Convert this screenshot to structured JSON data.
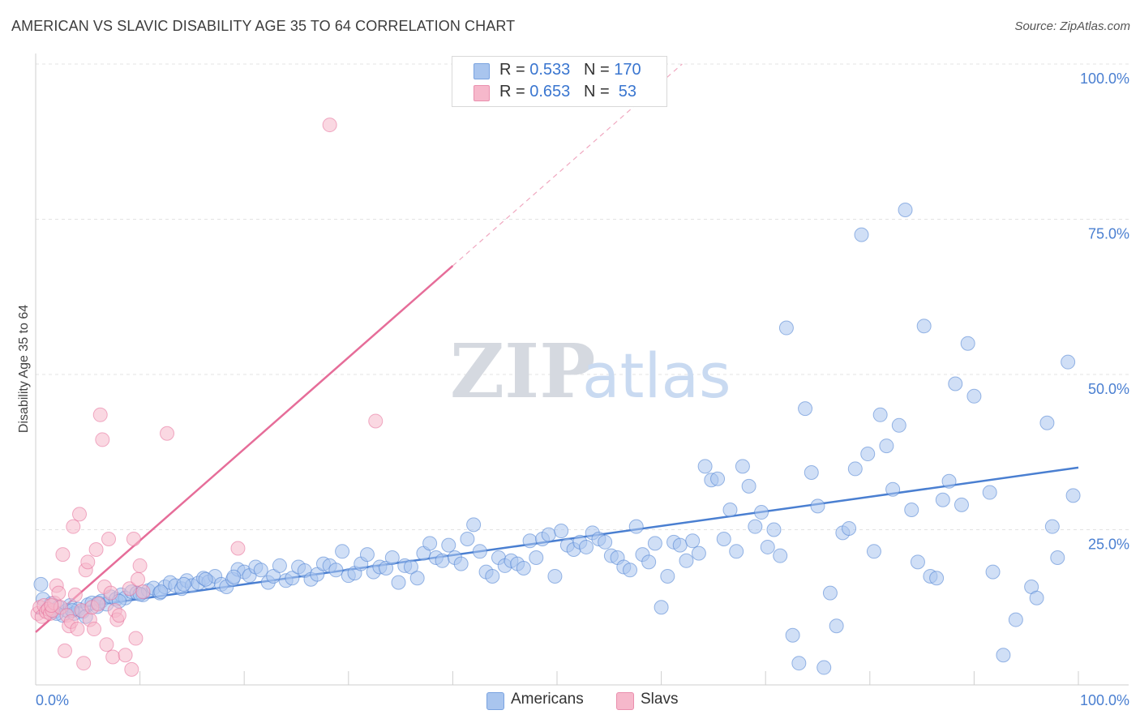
{
  "header": {
    "title": "AMERICAN VS SLAVIC DISABILITY AGE 35 TO 64 CORRELATION CHART",
    "source": "Source: ZipAtlas.com"
  },
  "watermark": {
    "part1": "ZIP",
    "part2": "atlas"
  },
  "legend": {
    "rows": [
      {
        "r_label": "R = ",
        "r_value": "0.533",
        "n_label": "N = ",
        "n_value": "170",
        "color": "#a9c5ee"
      },
      {
        "r_label": "R = ",
        "r_value": "0.653",
        "n_label": "N = ",
        "n_value": " 53",
        "color": "#f6b8cb"
      }
    ]
  },
  "bottom_legend": [
    {
      "label": "Americans",
      "color": "#a9c5ee"
    },
    {
      "label": "Slavs",
      "color": "#f6b8cb"
    }
  ],
  "chart_data": {
    "type": "scatter",
    "ylabel": "Disability Age 35 to 64",
    "xlim": [
      0,
      100
    ],
    "ylim": [
      0,
      100
    ],
    "x_tick_labels": [
      "0.0%",
      "100.0%"
    ],
    "y_tick_labels": [
      "25.0%",
      "50.0%",
      "75.0%",
      "100.0%"
    ],
    "y_ticks": [
      25,
      50,
      75,
      100
    ],
    "grid": "horizontal dashed",
    "series": [
      {
        "name": "Americans",
        "color": "#4a7fd1",
        "fill": "#a9c5ee",
        "trend": {
          "x0": 0,
          "y0": 11.5,
          "x1": 100,
          "y1": 35.0
        },
        "points": [
          [
            0.5,
            16.2
          ],
          [
            0.7,
            13.8
          ],
          [
            1.2,
            12.2
          ],
          [
            1.5,
            13.1
          ],
          [
            1.8,
            11.8
          ],
          [
            2.2,
            12.5
          ],
          [
            2.6,
            11.2
          ],
          [
            3.0,
            12.0
          ],
          [
            3.3,
            12.8
          ],
          [
            3.7,
            11.5
          ],
          [
            4.1,
            12.2
          ],
          [
            4.5,
            11.8
          ],
          [
            5.0,
            12.9
          ],
          [
            5.4,
            13.2
          ],
          [
            5.9,
            12.6
          ],
          [
            6.3,
            13.5
          ],
          [
            6.8,
            13.0
          ],
          [
            7.2,
            14.2
          ],
          [
            7.7,
            13.8
          ],
          [
            8.2,
            14.5
          ],
          [
            8.6,
            14.0
          ],
          [
            9.2,
            15.0
          ],
          [
            9.7,
            14.8
          ],
          [
            10.3,
            14.5
          ],
          [
            10.8,
            15.2
          ],
          [
            11.3,
            15.6
          ],
          [
            11.9,
            14.8
          ],
          [
            12.4,
            15.8
          ],
          [
            12.9,
            16.5
          ],
          [
            13.4,
            16.0
          ],
          [
            14.0,
            15.5
          ],
          [
            14.5,
            16.8
          ],
          [
            15.0,
            16.0
          ],
          [
            15.6,
            16.4
          ],
          [
            16.1,
            17.2
          ],
          [
            16.6,
            16.6
          ],
          [
            17.2,
            17.5
          ],
          [
            17.8,
            16.2
          ],
          [
            18.3,
            15.8
          ],
          [
            18.9,
            17.0
          ],
          [
            19.4,
            18.6
          ],
          [
            20.0,
            18.2
          ],
          [
            20.5,
            17.6
          ],
          [
            21.1,
            19.0
          ],
          [
            21.6,
            18.5
          ],
          [
            22.3,
            16.5
          ],
          [
            22.8,
            17.5
          ],
          [
            23.4,
            19.2
          ],
          [
            24.0,
            16.8
          ],
          [
            24.6,
            17.2
          ],
          [
            25.2,
            19.0
          ],
          [
            25.8,
            18.4
          ],
          [
            26.4,
            17.0
          ],
          [
            27.0,
            17.8
          ],
          [
            27.6,
            19.5
          ],
          [
            28.2,
            19.2
          ],
          [
            28.8,
            18.5
          ],
          [
            29.4,
            21.5
          ],
          [
            30.0,
            17.6
          ],
          [
            30.6,
            18.0
          ],
          [
            31.2,
            19.5
          ],
          [
            31.8,
            21.0
          ],
          [
            32.4,
            18.2
          ],
          [
            33.0,
            19.0
          ],
          [
            33.6,
            18.8
          ],
          [
            34.2,
            20.5
          ],
          [
            34.8,
            16.5
          ],
          [
            35.4,
            19.2
          ],
          [
            36.0,
            19.0
          ],
          [
            36.6,
            17.2
          ],
          [
            37.2,
            21.2
          ],
          [
            37.8,
            22.8
          ],
          [
            38.4,
            20.5
          ],
          [
            39.0,
            20.0
          ],
          [
            39.6,
            22.5
          ],
          [
            40.2,
            20.5
          ],
          [
            40.8,
            19.5
          ],
          [
            41.4,
            23.5
          ],
          [
            42.0,
            25.8
          ],
          [
            42.6,
            21.5
          ],
          [
            43.2,
            18.2
          ],
          [
            43.8,
            17.5
          ],
          [
            44.4,
            20.5
          ],
          [
            45.0,
            19.2
          ],
          [
            45.6,
            20.0
          ],
          [
            46.2,
            19.5
          ],
          [
            46.8,
            18.8
          ],
          [
            47.4,
            23.2
          ],
          [
            48.0,
            20.5
          ],
          [
            48.6,
            23.5
          ],
          [
            49.2,
            24.2
          ],
          [
            49.8,
            17.5
          ],
          [
            50.4,
            24.8
          ],
          [
            51.0,
            22.5
          ],
          [
            51.6,
            21.8
          ],
          [
            52.2,
            23.0
          ],
          [
            52.8,
            22.2
          ],
          [
            53.4,
            24.5
          ],
          [
            54.0,
            23.5
          ],
          [
            54.6,
            23.0
          ],
          [
            55.2,
            20.8
          ],
          [
            55.8,
            20.5
          ],
          [
            56.4,
            19.0
          ],
          [
            57.0,
            18.5
          ],
          [
            57.6,
            25.5
          ],
          [
            58.2,
            21.0
          ],
          [
            58.8,
            19.8
          ],
          [
            59.4,
            22.8
          ],
          [
            60.0,
            12.5
          ],
          [
            60.6,
            17.5
          ],
          [
            61.2,
            23.0
          ],
          [
            61.8,
            22.5
          ],
          [
            62.4,
            20.0
          ],
          [
            63.0,
            23.2
          ],
          [
            63.6,
            21.2
          ],
          [
            64.2,
            35.2
          ],
          [
            64.8,
            33.0
          ],
          [
            65.4,
            33.2
          ],
          [
            66.0,
            23.5
          ],
          [
            66.6,
            28.2
          ],
          [
            67.2,
            21.5
          ],
          [
            67.8,
            35.2
          ],
          [
            68.4,
            32.0
          ],
          [
            69.0,
            25.5
          ],
          [
            69.6,
            27.8
          ],
          [
            70.2,
            22.2
          ],
          [
            70.8,
            25.0
          ],
          [
            71.4,
            20.8
          ],
          [
            72.0,
            57.5
          ],
          [
            72.6,
            8.0
          ],
          [
            73.2,
            3.5
          ],
          [
            73.8,
            44.5
          ],
          [
            74.4,
            34.2
          ],
          [
            75.0,
            28.8
          ],
          [
            75.6,
            2.8
          ],
          [
            76.2,
            14.8
          ],
          [
            76.8,
            9.5
          ],
          [
            77.4,
            24.5
          ],
          [
            78.0,
            25.2
          ],
          [
            78.6,
            34.8
          ],
          [
            79.2,
            72.5
          ],
          [
            79.8,
            37.2
          ],
          [
            80.4,
            21.5
          ],
          [
            81.0,
            43.5
          ],
          [
            81.6,
            38.5
          ],
          [
            82.2,
            31.5
          ],
          [
            82.8,
            41.8
          ],
          [
            83.4,
            76.5
          ],
          [
            84.0,
            28.2
          ],
          [
            84.6,
            19.8
          ],
          [
            85.2,
            57.8
          ],
          [
            85.8,
            17.5
          ],
          [
            86.4,
            17.2
          ],
          [
            87.0,
            29.8
          ],
          [
            87.6,
            32.8
          ],
          [
            88.2,
            48.5
          ],
          [
            88.8,
            29.0
          ],
          [
            89.4,
            55.0
          ],
          [
            90.0,
            46.5
          ],
          [
            91.5,
            31.0
          ],
          [
            91.8,
            18.2
          ],
          [
            92.8,
            4.8
          ],
          [
            94.0,
            10.5
          ],
          [
            95.5,
            15.8
          ],
          [
            96.0,
            14.0
          ],
          [
            97.0,
            42.2
          ],
          [
            97.5,
            25.5
          ],
          [
            98.0,
            20.5
          ],
          [
            99.0,
            52.0
          ],
          [
            99.5,
            30.5
          ],
          [
            2.0,
            11.5
          ],
          [
            3.5,
            12.0
          ],
          [
            4.8,
            11.0
          ],
          [
            6.0,
            13.2
          ],
          [
            8.0,
            13.5
          ],
          [
            10.0,
            14.6
          ],
          [
            12.0,
            15.0
          ],
          [
            14.2,
            16.2
          ],
          [
            16.3,
            17.0
          ],
          [
            19.0,
            17.4
          ]
        ]
      },
      {
        "name": "Slavs",
        "color": "#e66d99",
        "fill": "#f6b8cb",
        "trend": {
          "x0": 0,
          "y0": 8.5,
          "x1": 40,
          "y1": 67.5,
          "dash_to": {
            "x": 62,
            "y": 100
          }
        },
        "points": [
          [
            0.2,
            11.5
          ],
          [
            0.4,
            12.5
          ],
          [
            0.6,
            11.0
          ],
          [
            0.8,
            12.8
          ],
          [
            1.0,
            11.8
          ],
          [
            1.2,
            12.2
          ],
          [
            1.4,
            11.5
          ],
          [
            1.6,
            12.0
          ],
          [
            1.8,
            13.2
          ],
          [
            2.0,
            16.0
          ],
          [
            2.2,
            14.8
          ],
          [
            2.4,
            12.5
          ],
          [
            2.6,
            21.0
          ],
          [
            2.8,
            5.5
          ],
          [
            3.0,
            11.2
          ],
          [
            3.2,
            9.5
          ],
          [
            3.4,
            10.2
          ],
          [
            3.6,
            25.5
          ],
          [
            3.8,
            14.5
          ],
          [
            4.0,
            9.0
          ],
          [
            4.2,
            27.5
          ],
          [
            4.4,
            12.0
          ],
          [
            4.6,
            3.5
          ],
          [
            4.8,
            18.5
          ],
          [
            5.0,
            19.8
          ],
          [
            5.2,
            10.5
          ],
          [
            5.4,
            12.5
          ],
          [
            5.6,
            9.0
          ],
          [
            5.8,
            21.8
          ],
          [
            6.0,
            13.0
          ],
          [
            6.2,
            43.5
          ],
          [
            6.4,
            39.5
          ],
          [
            6.6,
            15.8
          ],
          [
            6.8,
            6.5
          ],
          [
            7.0,
            23.5
          ],
          [
            7.2,
            14.8
          ],
          [
            7.4,
            4.5
          ],
          [
            7.6,
            12.0
          ],
          [
            7.8,
            10.5
          ],
          [
            8.0,
            11.2
          ],
          [
            8.6,
            4.8
          ],
          [
            9.0,
            15.5
          ],
          [
            9.2,
            2.5
          ],
          [
            9.4,
            23.5
          ],
          [
            9.6,
            7.5
          ],
          [
            9.8,
            17.0
          ],
          [
            10.0,
            19.2
          ],
          [
            10.3,
            15.0
          ],
          [
            12.6,
            40.5
          ],
          [
            19.4,
            22.0
          ],
          [
            28.2,
            90.2
          ],
          [
            32.6,
            42.5
          ],
          [
            1.5,
            12.8
          ]
        ]
      }
    ]
  }
}
